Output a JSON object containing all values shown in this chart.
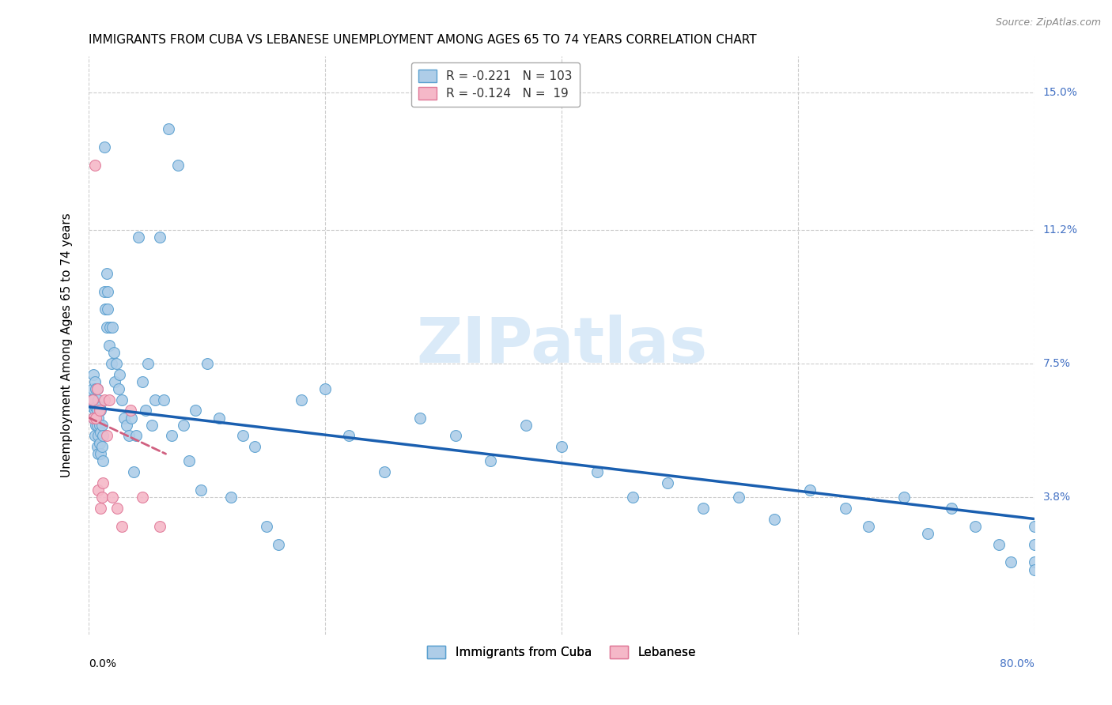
{
  "title": "IMMIGRANTS FROM CUBA VS LEBANESE UNEMPLOYMENT AMONG AGES 65 TO 74 YEARS CORRELATION CHART",
  "source": "Source: ZipAtlas.com",
  "ylabel": "Unemployment Among Ages 65 to 74 years",
  "xlim": [
    0.0,
    0.8
  ],
  "ylim": [
    0.0,
    0.16
  ],
  "ytick_vals": [
    0.038,
    0.075,
    0.112,
    0.15
  ],
  "ytick_labels": [
    "3.8%",
    "7.5%",
    "11.2%",
    "15.0%"
  ],
  "xtick_vals": [
    0.0,
    0.2,
    0.4,
    0.6,
    0.8
  ],
  "cuba_R": -0.221,
  "cuba_N": 103,
  "lebanese_R": -0.124,
  "lebanese_N": 19,
  "cuba_color": "#aecde8",
  "cuba_edge_color": "#5aa0d0",
  "lebanese_color": "#f5b8c8",
  "lebanese_edge_color": "#e07898",
  "trend_cuba_color": "#1a5fb0",
  "trend_lebanese_color": "#d06080",
  "watermark": "ZIPatlas",
  "watermark_color": "#daeaf8",
  "background_color": "#ffffff",
  "grid_color": "#cccccc",
  "cuba_trend_x0": 0.0,
  "cuba_trend_y0": 0.063,
  "cuba_trend_x1": 0.8,
  "cuba_trend_y1": 0.032,
  "leb_trend_x0": 0.0,
  "leb_trend_y0": 0.06,
  "leb_trend_x1": 0.065,
  "leb_trend_y1": 0.05,
  "cuba_x": [
    0.002,
    0.003,
    0.003,
    0.004,
    0.004,
    0.004,
    0.005,
    0.005,
    0.005,
    0.006,
    0.006,
    0.006,
    0.007,
    0.007,
    0.007,
    0.007,
    0.008,
    0.008,
    0.008,
    0.008,
    0.009,
    0.009,
    0.009,
    0.01,
    0.01,
    0.01,
    0.011,
    0.011,
    0.012,
    0.012,
    0.013,
    0.013,
    0.014,
    0.015,
    0.015,
    0.016,
    0.016,
    0.017,
    0.018,
    0.019,
    0.02,
    0.021,
    0.022,
    0.023,
    0.025,
    0.026,
    0.028,
    0.03,
    0.032,
    0.034,
    0.036,
    0.038,
    0.04,
    0.042,
    0.045,
    0.048,
    0.05,
    0.053,
    0.056,
    0.06,
    0.063,
    0.067,
    0.07,
    0.075,
    0.08,
    0.085,
    0.09,
    0.095,
    0.1,
    0.11,
    0.12,
    0.13,
    0.14,
    0.15,
    0.16,
    0.18,
    0.2,
    0.22,
    0.25,
    0.28,
    0.31,
    0.34,
    0.37,
    0.4,
    0.43,
    0.46,
    0.49,
    0.52,
    0.55,
    0.58,
    0.61,
    0.64,
    0.66,
    0.69,
    0.71,
    0.73,
    0.75,
    0.77,
    0.78,
    0.8,
    0.8,
    0.8,
    0.8
  ],
  "cuba_y": [
    0.065,
    0.063,
    0.068,
    0.06,
    0.065,
    0.072,
    0.055,
    0.062,
    0.07,
    0.058,
    0.063,
    0.068,
    0.052,
    0.058,
    0.062,
    0.068,
    0.05,
    0.055,
    0.06,
    0.065,
    0.053,
    0.058,
    0.063,
    0.05,
    0.056,
    0.062,
    0.052,
    0.058,
    0.048,
    0.055,
    0.135,
    0.095,
    0.09,
    0.1,
    0.085,
    0.095,
    0.09,
    0.08,
    0.085,
    0.075,
    0.085,
    0.078,
    0.07,
    0.075,
    0.068,
    0.072,
    0.065,
    0.06,
    0.058,
    0.055,
    0.06,
    0.045,
    0.055,
    0.11,
    0.07,
    0.062,
    0.075,
    0.058,
    0.065,
    0.11,
    0.065,
    0.14,
    0.055,
    0.13,
    0.058,
    0.048,
    0.062,
    0.04,
    0.075,
    0.06,
    0.038,
    0.055,
    0.052,
    0.03,
    0.025,
    0.065,
    0.068,
    0.055,
    0.045,
    0.06,
    0.055,
    0.048,
    0.058,
    0.052,
    0.045,
    0.038,
    0.042,
    0.035,
    0.038,
    0.032,
    0.04,
    0.035,
    0.03,
    0.038,
    0.028,
    0.035,
    0.03,
    0.025,
    0.02,
    0.03,
    0.025,
    0.02,
    0.018
  ],
  "lebanese_x": [
    0.003,
    0.004,
    0.005,
    0.006,
    0.007,
    0.008,
    0.009,
    0.01,
    0.011,
    0.012,
    0.013,
    0.015,
    0.017,
    0.02,
    0.024,
    0.028,
    0.035,
    0.045,
    0.06
  ],
  "lebanese_y": [
    0.065,
    0.06,
    0.13,
    0.06,
    0.068,
    0.04,
    0.062,
    0.035,
    0.038,
    0.042,
    0.065,
    0.055,
    0.065,
    0.038,
    0.035,
    0.03,
    0.062,
    0.038,
    0.03
  ]
}
